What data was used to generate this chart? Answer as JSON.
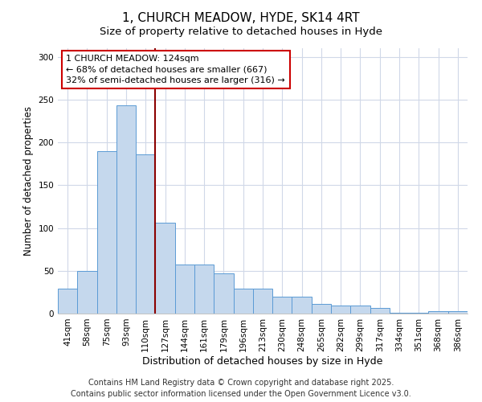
{
  "title": "1, CHURCH MEADOW, HYDE, SK14 4RT",
  "subtitle": "Size of property relative to detached houses in Hyde",
  "xlabel": "Distribution of detached houses by size in Hyde",
  "ylabel": "Number of detached properties",
  "categories": [
    "41sqm",
    "58sqm",
    "75sqm",
    "93sqm",
    "110sqm",
    "127sqm",
    "144sqm",
    "161sqm",
    "179sqm",
    "196sqm",
    "213sqm",
    "230sqm",
    "248sqm",
    "265sqm",
    "282sqm",
    "299sqm",
    "317sqm",
    "334sqm",
    "351sqm",
    "368sqm",
    "386sqm"
  ],
  "values": [
    29,
    50,
    190,
    243,
    186,
    106,
    57,
    57,
    47,
    29,
    29,
    20,
    20,
    11,
    9,
    9,
    7,
    1,
    1,
    3,
    3
  ],
  "bar_color": "#c5d8ed",
  "bar_edge_color": "#5b9bd5",
  "vline_color": "#8b0000",
  "annotation_title": "1 CHURCH MEADOW: 124sqm",
  "annotation_line1": "← 68% of detached houses are smaller (667)",
  "annotation_line2": "32% of semi-detached houses are larger (316) →",
  "annotation_box_color": "#ffffff",
  "annotation_box_edge_color": "#cc0000",
  "ylim": [
    0,
    310
  ],
  "yticks": [
    0,
    50,
    100,
    150,
    200,
    250,
    300
  ],
  "footer1": "Contains HM Land Registry data © Crown copyright and database right 2025.",
  "footer2": "Contains public sector information licensed under the Open Government Licence v3.0.",
  "background_color": "#ffffff",
  "plot_background_color": "#ffffff",
  "grid_color": "#d0d8e8",
  "title_fontsize": 11,
  "subtitle_fontsize": 9.5,
  "xlabel_fontsize": 9,
  "ylabel_fontsize": 8.5,
  "tick_fontsize": 7.5,
  "footer_fontsize": 7,
  "annotation_fontsize": 8
}
